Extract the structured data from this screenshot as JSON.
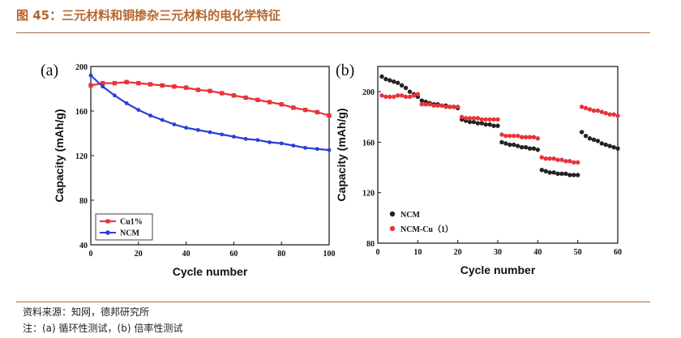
{
  "header": {
    "title": "图 45：三元材料和铜掺杂三元材料的电化学特征"
  },
  "footer": {
    "source": "资料来源：知网，德邦研究所",
    "note": "注：(a) 循环性测试，(b) 倍率性测试"
  },
  "colors": {
    "accent": "#b5652a",
    "series_red": "#e8333a",
    "series_blue": "#2a3fd6",
    "series_black": "#222222"
  },
  "chart_data": [
    {
      "type": "line",
      "panel_label": "(a)",
      "xlabel": "Cycle number",
      "ylabel": "Capacity  (mAh/g)",
      "xlim": [
        0,
        100
      ],
      "ylim": [
        40,
        200
      ],
      "xticks": [
        0,
        20,
        40,
        60,
        80,
        100
      ],
      "yticks": [
        40,
        80,
        120,
        160,
        200
      ],
      "legend": {
        "position": "bottom-left",
        "entries": [
          "Cu1%",
          "NCM"
        ]
      },
      "series": [
        {
          "name": "Cu1%",
          "color": "#e8333a",
          "marker": "square",
          "x": [
            0,
            5,
            10,
            15,
            20,
            25,
            30,
            35,
            40,
            45,
            50,
            55,
            60,
            65,
            70,
            75,
            80,
            85,
            90,
            95,
            100
          ],
          "y": [
            183,
            185,
            185,
            186,
            185,
            184,
            183,
            182,
            181,
            179,
            178,
            176,
            174,
            172,
            170,
            168,
            166,
            163,
            161,
            159,
            156
          ]
        },
        {
          "name": "NCM",
          "color": "#2a3fd6",
          "marker": "circle",
          "x": [
            0,
            5,
            10,
            15,
            20,
            25,
            30,
            35,
            40,
            45,
            50,
            55,
            60,
            65,
            70,
            75,
            80,
            85,
            90,
            95,
            100
          ],
          "y": [
            192,
            182,
            174,
            167,
            161,
            156,
            152,
            148,
            145,
            143,
            141,
            139,
            137,
            135,
            134,
            132,
            131,
            129,
            127,
            126,
            125
          ]
        }
      ]
    },
    {
      "type": "scatter",
      "panel_label": "(b)",
      "xlabel": "Cycle number",
      "ylabel": "Capacity  (mAh/g)",
      "xlim": [
        0,
        60
      ],
      "ylim": [
        80,
        220
      ],
      "xticks": [
        0,
        10,
        20,
        30,
        40,
        50,
        60
      ],
      "yticks": [
        80,
        120,
        160,
        200
      ],
      "legend": {
        "position": "bottom-left",
        "entries": [
          "NCM",
          "NCM-Cu（1）"
        ]
      },
      "series": [
        {
          "name": "NCM",
          "color": "#222222",
          "x": [
            1,
            2,
            3,
            4,
            5,
            6,
            7,
            8,
            9,
            10,
            11,
            12,
            13,
            14,
            15,
            16,
            17,
            18,
            19,
            20,
            21,
            22,
            23,
            24,
            25,
            26,
            27,
            28,
            29,
            30,
            31,
            32,
            33,
            34,
            35,
            36,
            37,
            38,
            39,
            40,
            41,
            42,
            43,
            44,
            45,
            46,
            47,
            48,
            49,
            50,
            51,
            52,
            53,
            54,
            55,
            56,
            57,
            58,
            59,
            60
          ],
          "y": [
            212,
            210,
            209,
            208,
            207,
            205,
            203,
            200,
            198,
            196,
            193,
            192,
            191,
            190,
            190,
            189,
            189,
            188,
            188,
            187,
            178,
            177,
            176,
            176,
            175,
            175,
            174,
            174,
            173,
            173,
            160,
            159,
            158,
            158,
            157,
            156,
            156,
            155,
            155,
            154,
            138,
            137,
            136,
            136,
            135,
            135,
            135,
            134,
            134,
            134,
            168,
            165,
            163,
            162,
            161,
            159,
            158,
            157,
            156,
            155
          ]
        },
        {
          "name": "NCM-Cu（1）",
          "color": "#e8333a",
          "x": [
            1,
            2,
            3,
            4,
            5,
            6,
            7,
            8,
            9,
            10,
            11,
            12,
            13,
            14,
            15,
            16,
            17,
            18,
            19,
            20,
            21,
            22,
            23,
            24,
            25,
            26,
            27,
            28,
            29,
            30,
            31,
            32,
            33,
            34,
            35,
            36,
            37,
            38,
            39,
            40,
            41,
            42,
            43,
            44,
            45,
            46,
            47,
            48,
            49,
            50,
            51,
            52,
            53,
            54,
            55,
            56,
            57,
            58,
            59,
            60
          ],
          "y": [
            197,
            196,
            196,
            196,
            197,
            197,
            196,
            196,
            197,
            198,
            190,
            190,
            190,
            189,
            189,
            189,
            188,
            188,
            188,
            188,
            180,
            179,
            179,
            179,
            179,
            178,
            178,
            178,
            178,
            178,
            166,
            165,
            165,
            165,
            165,
            164,
            164,
            164,
            164,
            163,
            148,
            147,
            147,
            147,
            146,
            146,
            145,
            145,
            144,
            144,
            188,
            187,
            186,
            185,
            185,
            184,
            183,
            182,
            182,
            181
          ]
        }
      ]
    }
  ]
}
